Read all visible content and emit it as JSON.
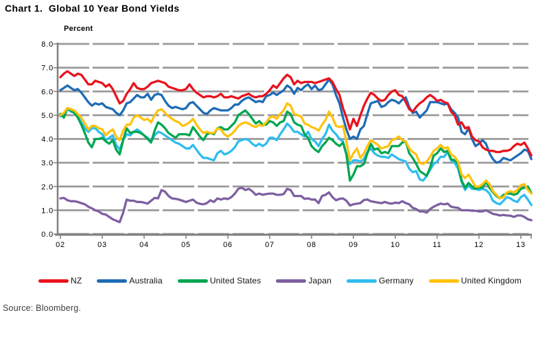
{
  "header": {
    "title": "Chart 1.  Global 10 Year Bond Yields"
  },
  "footer": {
    "source": "Source: Bloomberg."
  },
  "chart_data": {
    "type": "line",
    "title": "Chart 1.  Global 10 Year Bond Yields",
    "ylabel": "Percent",
    "xlabel": "",
    "grid": true,
    "legend_position": "bottom",
    "ylim": [
      0.0,
      8.0
    ],
    "y_tick_step": 1.0,
    "y_tick_labels": [
      "0.0",
      "1.0",
      "2.0",
      "3.0",
      "4.0",
      "5.0",
      "6.0",
      "7.0",
      "8.0"
    ],
    "x_tick_labels": [
      "02",
      "03",
      "04",
      "05",
      "06",
      "07",
      "08",
      "09",
      "10",
      "11",
      "12",
      "13"
    ],
    "x_start_year": 2002,
    "x_end_year_fraction": 2013.25,
    "points_per_year": 12,
    "axis_color": "#7f7f7f",
    "grid_color": "#9a9a9a",
    "series": [
      {
        "name": "NZ",
        "color": "#e8131d",
        "values": [
          6.6,
          6.75,
          6.85,
          6.75,
          6.65,
          6.75,
          6.7,
          6.5,
          6.3,
          6.3,
          6.45,
          6.4,
          6.35,
          6.2,
          6.3,
          6.1,
          5.8,
          5.5,
          5.6,
          5.9,
          6.1,
          6.35,
          6.15,
          6.1,
          6.1,
          6.2,
          6.35,
          6.4,
          6.45,
          6.4,
          6.35,
          6.2,
          6.15,
          6.1,
          6.05,
          6.05,
          6.1,
          6.3,
          6.1,
          5.95,
          5.85,
          5.75,
          5.8,
          5.8,
          5.75,
          5.8,
          5.9,
          5.75,
          5.75,
          5.8,
          5.75,
          5.7,
          5.8,
          5.85,
          5.9,
          5.8,
          5.75,
          5.8,
          5.8,
          5.9,
          6.05,
          6.25,
          6.15,
          6.35,
          6.55,
          6.7,
          6.6,
          6.3,
          6.45,
          6.35,
          6.4,
          6.4,
          6.4,
          6.35,
          6.4,
          6.45,
          6.5,
          6.55,
          6.4,
          6.1,
          5.85,
          5.3,
          4.9,
          4.4,
          4.85,
          4.55,
          5.0,
          5.4,
          5.7,
          5.95,
          5.85,
          5.7,
          5.6,
          5.65,
          5.85,
          6.0,
          6.05,
          5.85,
          5.8,
          5.55,
          5.25,
          5.15,
          5.35,
          5.5,
          5.6,
          5.75,
          5.85,
          5.75,
          5.6,
          5.65,
          5.55,
          5.5,
          5.15,
          5.0,
          4.6,
          4.7,
          4.45,
          4.5,
          4.1,
          3.95,
          3.9,
          3.65,
          3.55,
          3.5,
          3.5,
          3.45,
          3.45,
          3.5,
          3.5,
          3.55,
          3.7,
          3.8,
          3.75,
          3.85,
          3.6,
          3.3
        ]
      },
      {
        "name": "Australia",
        "color": "#1e6cb5",
        "values": [
          6.05,
          6.15,
          6.25,
          6.15,
          6.05,
          6.1,
          5.95,
          5.75,
          5.55,
          5.4,
          5.5,
          5.45,
          5.5,
          5.35,
          5.3,
          5.25,
          5.1,
          5.0,
          5.2,
          5.5,
          5.55,
          5.7,
          5.85,
          5.75,
          5.75,
          5.9,
          5.65,
          5.85,
          5.9,
          5.85,
          5.6,
          5.4,
          5.3,
          5.35,
          5.3,
          5.25,
          5.3,
          5.5,
          5.55,
          5.4,
          5.25,
          5.1,
          5.05,
          5.2,
          5.3,
          5.25,
          5.2,
          5.2,
          5.2,
          5.3,
          5.45,
          5.45,
          5.6,
          5.7,
          5.75,
          5.65,
          5.55,
          5.6,
          5.55,
          5.8,
          5.85,
          5.95,
          5.85,
          5.95,
          6.05,
          6.25,
          6.15,
          5.9,
          6.15,
          6.05,
          6.2,
          6.3,
          6.1,
          6.25,
          6.05,
          6.1,
          6.3,
          6.5,
          6.3,
          5.85,
          5.5,
          4.9,
          4.4,
          4.0,
          4.1,
          4.0,
          4.4,
          4.55,
          5.05,
          5.5,
          5.55,
          5.6,
          5.35,
          5.4,
          5.55,
          5.65,
          5.6,
          5.5,
          5.65,
          5.75,
          5.35,
          5.1,
          5.15,
          4.9,
          5.05,
          5.2,
          5.55,
          5.55,
          5.55,
          5.5,
          5.45,
          5.5,
          5.25,
          5.1,
          4.9,
          4.3,
          4.2,
          4.45,
          4.0,
          3.7,
          3.8,
          3.95,
          3.8,
          3.4,
          3.15,
          3.0,
          3.05,
          3.2,
          3.15,
          3.1,
          3.2,
          3.3,
          3.4,
          3.55,
          3.5,
          3.15
        ]
      },
      {
        "name": "United States",
        "color": "#00a651",
        "values": [
          5.05,
          4.9,
          5.3,
          5.2,
          5.1,
          4.9,
          4.6,
          4.25,
          3.85,
          3.65,
          4.0,
          4.0,
          4.05,
          3.9,
          3.8,
          3.95,
          3.55,
          3.35,
          3.95,
          4.45,
          4.25,
          4.3,
          4.3,
          4.25,
          4.15,
          4.0,
          3.85,
          4.35,
          4.7,
          4.6,
          4.45,
          4.25,
          4.15,
          4.05,
          4.2,
          4.2,
          4.2,
          4.15,
          4.5,
          4.3,
          4.1,
          3.95,
          4.2,
          4.25,
          4.2,
          4.45,
          4.5,
          4.4,
          4.4,
          4.55,
          4.7,
          5.0,
          5.1,
          5.2,
          5.05,
          4.85,
          4.65,
          4.75,
          4.6,
          4.6,
          4.75,
          4.7,
          4.55,
          4.7,
          4.75,
          5.15,
          5.05,
          4.7,
          4.6,
          4.55,
          4.2,
          4.05,
          3.7,
          3.55,
          3.45,
          3.7,
          3.85,
          4.05,
          3.95,
          3.8,
          3.7,
          3.85,
          3.35,
          2.25,
          2.5,
          2.85,
          2.85,
          2.95,
          3.4,
          3.8,
          3.55,
          3.6,
          3.4,
          3.45,
          3.4,
          3.7,
          3.7,
          3.7,
          3.85,
          3.9,
          3.4,
          3.2,
          2.95,
          2.65,
          2.55,
          2.45,
          2.8,
          3.3,
          3.4,
          3.6,
          3.45,
          3.5,
          3.15,
          3.1,
          2.95,
          2.25,
          1.95,
          2.15,
          2.0,
          1.9,
          1.95,
          1.95,
          2.2,
          1.95,
          1.75,
          1.6,
          1.5,
          1.65,
          1.7,
          1.7,
          1.65,
          1.7,
          1.9,
          1.95,
          2.0,
          1.72
        ]
      },
      {
        "name": "Japan",
        "color": "#7d60a0",
        "values": [
          1.5,
          1.52,
          1.42,
          1.38,
          1.38,
          1.35,
          1.3,
          1.25,
          1.15,
          1.08,
          1.0,
          0.95,
          0.85,
          0.82,
          0.72,
          0.62,
          0.56,
          0.5,
          0.9,
          1.45,
          1.4,
          1.4,
          1.35,
          1.35,
          1.32,
          1.28,
          1.4,
          1.52,
          1.5,
          1.85,
          1.78,
          1.6,
          1.5,
          1.48,
          1.45,
          1.4,
          1.35,
          1.4,
          1.45,
          1.32,
          1.27,
          1.25,
          1.3,
          1.42,
          1.35,
          1.5,
          1.45,
          1.5,
          1.47,
          1.55,
          1.7,
          1.9,
          1.95,
          1.85,
          1.9,
          1.8,
          1.65,
          1.7,
          1.65,
          1.68,
          1.7,
          1.7,
          1.65,
          1.65,
          1.68,
          1.9,
          1.85,
          1.6,
          1.6,
          1.6,
          1.48,
          1.5,
          1.45,
          1.45,
          1.3,
          1.6,
          1.65,
          1.75,
          1.55,
          1.42,
          1.48,
          1.5,
          1.4,
          1.2,
          1.25,
          1.28,
          1.3,
          1.43,
          1.45,
          1.38,
          1.35,
          1.32,
          1.3,
          1.35,
          1.3,
          1.28,
          1.32,
          1.3,
          1.38,
          1.3,
          1.25,
          1.1,
          1.05,
          0.95,
          0.95,
          0.9,
          1.05,
          1.15,
          1.22,
          1.28,
          1.25,
          1.28,
          1.15,
          1.12,
          1.1,
          1.0,
          1.0,
          1.0,
          0.98,
          0.98,
          0.95,
          0.95,
          1.0,
          0.92,
          0.85,
          0.82,
          0.78,
          0.8,
          0.78,
          0.77,
          0.72,
          0.78,
          0.78,
          0.72,
          0.62,
          0.58
        ]
      },
      {
        "name": "Germany",
        "color": "#2fbdee",
        "values": [
          4.95,
          5.05,
          5.25,
          5.15,
          5.1,
          4.95,
          4.7,
          4.45,
          4.3,
          4.45,
          4.45,
          4.3,
          4.2,
          3.95,
          4.05,
          4.15,
          3.75,
          3.55,
          3.95,
          4.2,
          4.15,
          4.3,
          4.4,
          4.3,
          4.15,
          4.05,
          3.9,
          4.15,
          4.3,
          4.25,
          4.15,
          4.05,
          3.95,
          3.85,
          3.8,
          3.7,
          3.6,
          3.6,
          3.75,
          3.55,
          3.35,
          3.2,
          3.2,
          3.15,
          3.1,
          3.4,
          3.5,
          3.35,
          3.4,
          3.5,
          3.65,
          3.9,
          3.95,
          4.0,
          3.95,
          3.8,
          3.7,
          3.8,
          3.7,
          3.8,
          4.05,
          4.05,
          3.95,
          4.2,
          4.4,
          4.65,
          4.5,
          4.3,
          4.3,
          4.2,
          4.1,
          4.3,
          4.0,
          3.9,
          3.7,
          4.0,
          4.2,
          4.6,
          4.35,
          4.2,
          4.0,
          3.9,
          3.35,
          2.95,
          3.1,
          3.1,
          3.05,
          3.15,
          3.45,
          3.6,
          3.4,
          3.3,
          3.25,
          3.25,
          3.2,
          3.35,
          3.25,
          3.15,
          3.1,
          3.05,
          2.75,
          2.6,
          2.65,
          2.3,
          2.25,
          2.45,
          2.7,
          2.95,
          3.05,
          3.25,
          3.25,
          3.45,
          3.1,
          3.0,
          2.75,
          2.2,
          1.85,
          2.05,
          1.9,
          1.9,
          1.85,
          1.9,
          1.85,
          1.7,
          1.4,
          1.3,
          1.25,
          1.4,
          1.55,
          1.5,
          1.4,
          1.35,
          1.55,
          1.65,
          1.45,
          1.22
        ]
      },
      {
        "name": "United Kingdom",
        "color": "#ffc20e",
        "values": [
          5.0,
          5.1,
          5.3,
          5.25,
          5.2,
          5.05,
          4.9,
          4.65,
          4.4,
          4.55,
          4.55,
          4.45,
          4.4,
          4.15,
          4.3,
          4.4,
          4.1,
          3.95,
          4.35,
          4.6,
          4.6,
          4.9,
          5.0,
          4.9,
          4.8,
          4.85,
          4.7,
          5.0,
          5.2,
          5.25,
          5.1,
          4.95,
          4.85,
          4.75,
          4.7,
          4.55,
          4.6,
          4.7,
          4.85,
          4.6,
          4.4,
          4.25,
          4.3,
          4.25,
          4.25,
          4.45,
          4.4,
          4.2,
          4.1,
          4.2,
          4.35,
          4.55,
          4.65,
          4.7,
          4.65,
          4.55,
          4.5,
          4.6,
          4.55,
          4.7,
          4.9,
          4.95,
          4.85,
          5.05,
          5.2,
          5.5,
          5.4,
          5.05,
          5.0,
          4.95,
          4.65,
          4.6,
          4.5,
          4.45,
          4.35,
          4.6,
          4.8,
          5.15,
          4.9,
          4.55,
          4.5,
          4.55,
          3.9,
          3.1,
          3.4,
          3.6,
          3.2,
          3.4,
          3.7,
          3.95,
          3.85,
          3.75,
          3.6,
          3.65,
          3.7,
          3.95,
          4.0,
          4.1,
          3.95,
          3.9,
          3.6,
          3.45,
          3.35,
          3.0,
          2.95,
          3.05,
          3.25,
          3.5,
          3.6,
          3.75,
          3.6,
          3.65,
          3.35,
          3.25,
          3.05,
          2.5,
          2.35,
          2.5,
          2.25,
          2.0,
          2.0,
          2.1,
          2.25,
          2.1,
          1.8,
          1.65,
          1.5,
          1.55,
          1.75,
          1.8,
          1.75,
          1.85,
          2.05,
          2.1,
          1.85,
          1.7
        ]
      }
    ]
  }
}
